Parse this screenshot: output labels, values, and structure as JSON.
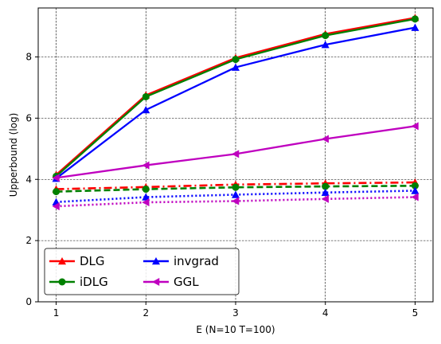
{
  "chart_data": {
    "type": "line",
    "xlabel": "E (N=10 T=100)",
    "ylabel": "Upperbound (log)",
    "x": [
      1,
      2,
      3,
      4,
      5
    ],
    "xlim": [
      0.8,
      5.2
    ],
    "ylim": [
      0,
      9.6
    ],
    "xticks": [
      1,
      2,
      3,
      4,
      5
    ],
    "yticks": [
      0,
      2,
      4,
      6,
      8
    ],
    "grid": true,
    "legend_position": "bottom-left",
    "legend": [
      {
        "name": "DLG",
        "color": "#ff0000",
        "marker": "triangle-up"
      },
      {
        "name": "iDLG",
        "color": "#008000",
        "marker": "circle"
      },
      {
        "name": "invgrad",
        "color": "#0000ff",
        "marker": "triangle-up"
      },
      {
        "name": "GGL",
        "color": "#bf00bf",
        "marker": "triangle-left"
      }
    ],
    "series": [
      {
        "legend_index": 0,
        "color": "#ff0000",
        "marker": "triangle-up",
        "style": "solid",
        "values": [
          4.15,
          6.75,
          7.97,
          8.75,
          9.28
        ]
      },
      {
        "legend_index": 1,
        "color": "#008000",
        "marker": "circle",
        "style": "solid",
        "values": [
          4.1,
          6.7,
          7.92,
          8.7,
          9.24
        ]
      },
      {
        "legend_index": 2,
        "color": "#0000ff",
        "marker": "triangle-up",
        "style": "solid",
        "values": [
          4.03,
          6.27,
          7.66,
          8.4,
          8.96
        ]
      },
      {
        "legend_index": 3,
        "color": "#bf00bf",
        "marker": "triangle-left",
        "style": "solid",
        "values": [
          4.05,
          4.46,
          4.83,
          5.32,
          5.74
        ]
      },
      {
        "color": "#ff0000",
        "marker": "triangle-up",
        "style": "dashdot",
        "values": [
          3.68,
          3.75,
          3.83,
          3.87,
          3.9
        ]
      },
      {
        "color": "#008000",
        "marker": "circle",
        "style": "dashed",
        "values": [
          3.6,
          3.68,
          3.74,
          3.77,
          3.79
        ]
      },
      {
        "color": "#0000ff",
        "marker": "triangle-up",
        "style": "dotted",
        "values": [
          3.26,
          3.42,
          3.5,
          3.57,
          3.63
        ]
      },
      {
        "color": "#bf00bf",
        "marker": "triangle-left",
        "style": "dotted",
        "values": [
          3.12,
          3.25,
          3.29,
          3.36,
          3.42
        ]
      }
    ]
  }
}
